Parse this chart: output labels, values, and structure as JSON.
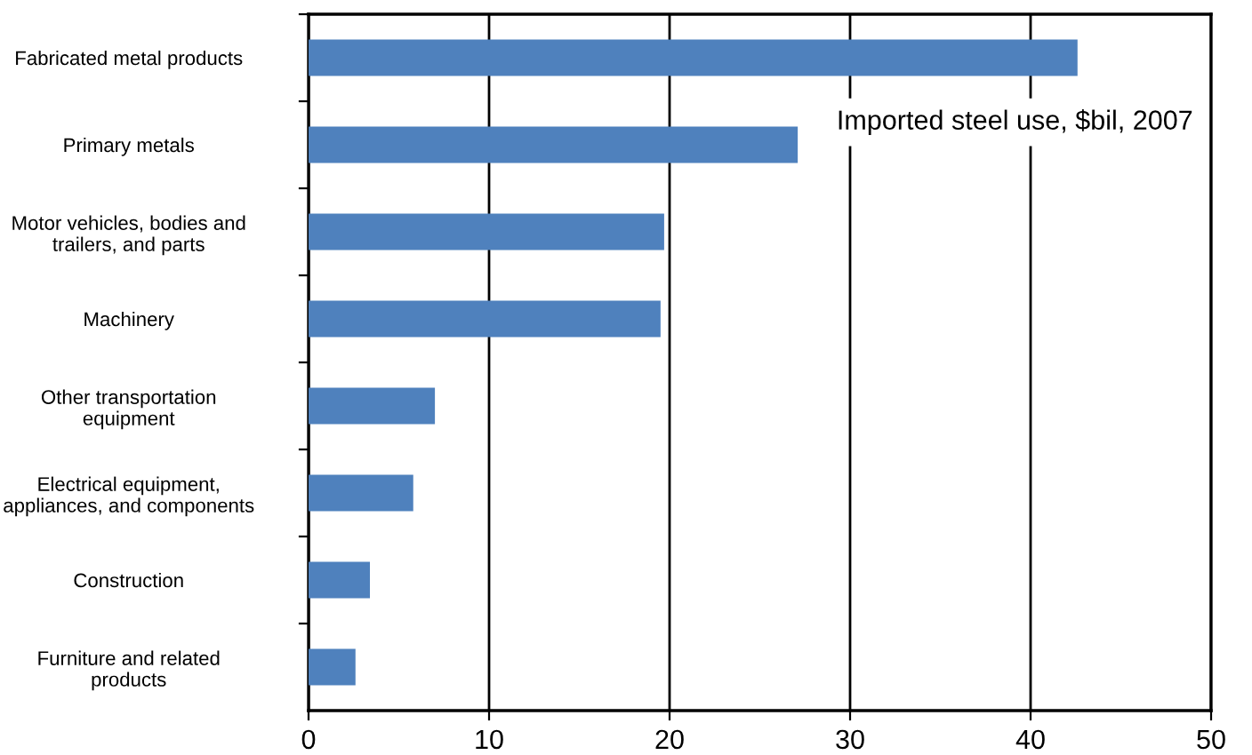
{
  "chart_data": {
    "type": "bar",
    "orientation": "horizontal",
    "categories": [
      "Fabricated metal products",
      "Primary metals",
      "Motor vehicles, bodies and\ntrailers, and parts",
      "Machinery",
      "Other transportation\nequipment",
      "Electrical equipment,\nappliances, and components",
      "Construction",
      "Furniture and related\nproducts"
    ],
    "values": [
      42.6,
      27.1,
      19.7,
      19.5,
      7.0,
      5.8,
      3.4,
      2.6
    ],
    "color": "#4f81bd",
    "xlim": [
      0,
      50
    ],
    "xticks": [
      0,
      10,
      20,
      30,
      40,
      50
    ],
    "grid": "x",
    "annotations": [
      "Imported steel use, $bil, 2007"
    ]
  }
}
